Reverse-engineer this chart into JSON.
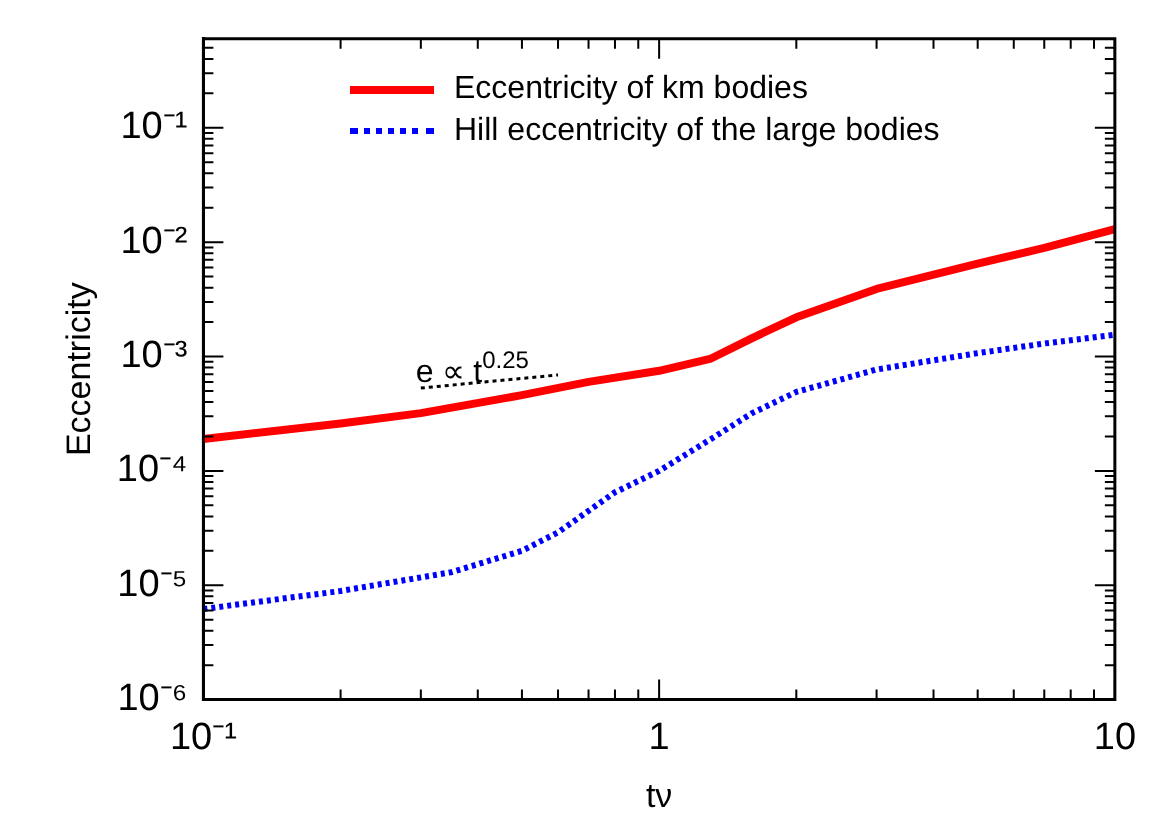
{
  "chart_data": {
    "type": "line",
    "xlabel": "tν",
    "ylabel": "Eccentricity",
    "log": "xy",
    "legend": "top",
    "marker": "none",
    "grid": false,
    "xlim": [
      0.1,
      10
    ],
    "ylim": [
      1e-06,
      0.6
    ],
    "xticks": [
      {
        "value": 0.1,
        "label": "10⁻¹"
      },
      {
        "value": 0.2,
        "label": null
      },
      {
        "value": 0.3,
        "label": null
      },
      {
        "value": 0.4,
        "label": null
      },
      {
        "value": 0.5,
        "label": null
      },
      {
        "value": 0.6,
        "label": null
      },
      {
        "value": 0.7,
        "label": null
      },
      {
        "value": 0.8,
        "label": null
      },
      {
        "value": 0.9,
        "label": null
      },
      1,
      {
        "value": 2,
        "label": null
      },
      {
        "value": 3,
        "label": null
      },
      {
        "value": 4,
        "label": null
      },
      {
        "value": 5,
        "label": null
      },
      {
        "value": 6,
        "label": null
      },
      {
        "value": 7,
        "label": null
      },
      {
        "value": 8,
        "label": null
      },
      {
        "value": 9,
        "label": null
      },
      10
    ],
    "yticks": [
      {
        "value": 1e-06,
        "label": "10⁻⁶"
      },
      {
        "value": 2e-06,
        "label": null
      },
      {
        "value": 3e-06,
        "label": null
      },
      {
        "value": 4e-06,
        "label": null
      },
      {
        "value": 5e-06,
        "label": null
      },
      {
        "value": 6e-06,
        "label": null
      },
      {
        "value": 7e-06,
        "label": null
      },
      {
        "value": 8e-06,
        "label": null
      },
      {
        "value": 9e-06,
        "label": null
      },
      {
        "value": 1e-05,
        "label": "10⁻⁵"
      },
      {
        "value": 2e-05,
        "label": null
      },
      {
        "value": 3e-05,
        "label": null
      },
      {
        "value": 4e-05,
        "label": null
      },
      {
        "value": 5e-05,
        "label": null
      },
      {
        "value": 6e-05,
        "label": null
      },
      {
        "value": 7e-05,
        "label": null
      },
      {
        "value": 8e-05,
        "label": null
      },
      {
        "value": 9e-05,
        "label": null
      },
      {
        "value": 0.0001,
        "label": "10⁻⁴"
      },
      {
        "value": 0.0002,
        "label": null
      },
      {
        "value": 0.0003,
        "label": null
      },
      {
        "value": 0.0004,
        "label": null
      },
      {
        "value": 0.0005,
        "label": null
      },
      {
        "value": 0.0006,
        "label": null
      },
      {
        "value": 0.0007,
        "label": null
      },
      {
        "value": 0.0008,
        "label": null
      },
      {
        "value": 0.0009,
        "label": null
      },
      {
        "value": 0.001,
        "label": "10⁻³"
      },
      {
        "value": 0.002,
        "label": null
      },
      {
        "value": 0.003,
        "label": null
      },
      {
        "value": 0.004,
        "label": null
      },
      {
        "value": 0.005,
        "label": null
      },
      {
        "value": 0.006,
        "label": null
      },
      {
        "value": 0.007,
        "label": null
      },
      {
        "value": 0.008,
        "label": null
      },
      {
        "value": 0.009,
        "label": null
      },
      {
        "value": 0.01,
        "label": "10⁻²"
      },
      {
        "value": 0.02,
        "label": null
      },
      {
        "value": 0.03,
        "label": null
      },
      {
        "value": 0.04,
        "label": null
      },
      {
        "value": 0.05,
        "label": null
      },
      {
        "value": 0.06,
        "label": null
      },
      {
        "value": 0.07,
        "label": null
      },
      {
        "value": 0.08,
        "label": null
      },
      {
        "value": 0.09,
        "label": null
      },
      {
        "value": 0.1,
        "label": "10⁻¹"
      },
      {
        "value": 0.2,
        "label": null
      },
      {
        "value": 0.3,
        "label": null
      },
      {
        "value": 0.4,
        "label": null
      },
      {
        "value": 0.5,
        "label": null
      }
    ],
    "annotations": [
      "e ∝ t$^{0.25}$"
    ],
    "series": [
      {
        "name": "Eccentricity of km bodies",
        "color": "#ff0000",
        "line_style": "solid",
        "x": [
          0.1,
          0.2,
          0.3,
          0.5,
          0.7,
          1,
          1.3,
          1.6,
          2,
          3,
          5,
          7,
          10
        ],
        "values": [
          0.00019,
          0.00026,
          0.00032,
          0.00046,
          0.0006,
          0.00075,
          0.00096,
          0.00145,
          0.0022,
          0.0039,
          0.0065,
          0.0089,
          0.013
        ]
      },
      {
        "name": "Hill eccentricity of the large bodies",
        "color": "#0000ff",
        "line_style": "dotted",
        "x": [
          0.1,
          0.2,
          0.35,
          0.5,
          0.6,
          0.8,
          1,
          1.3,
          1.6,
          2,
          3,
          5,
          7,
          10
        ],
        "values": [
          6.2e-06,
          8.9e-06,
          1.3e-05,
          2e-05,
          2.9e-05,
          6.5e-05,
          0.0001,
          0.00019,
          0.00032,
          0.00049,
          0.00077,
          0.00107,
          0.0013,
          0.00155
        ]
      },
      {
        "type": "line",
        "color": "#000000",
        "line_style": "dotted",
        "x": [
          0.3,
          0.6
        ],
        "values": [
          0.00053,
          0.00069
        ]
      }
    ]
  }
}
